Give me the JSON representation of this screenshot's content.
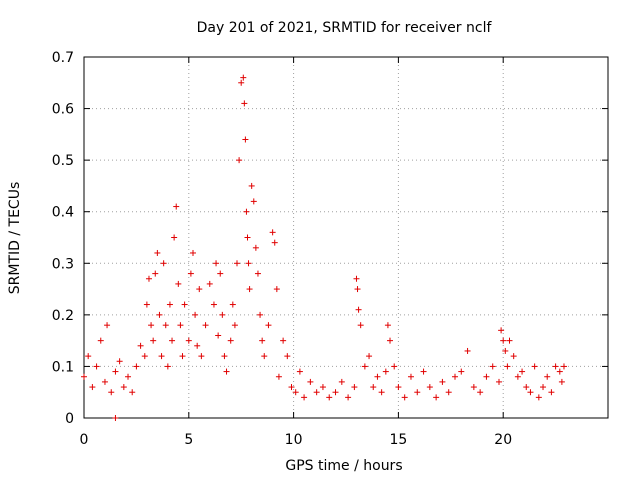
{
  "chart_data": {
    "type": "scatter",
    "title": "Day 201 of 2021, SRMTID for receiver nclf",
    "xlabel": "GPS time / hours",
    "ylabel": "SRMTID / TECUs",
    "xlim": [
      0,
      25
    ],
    "ylim": [
      0,
      0.7
    ],
    "x_ticks": [
      0,
      5,
      10,
      15,
      20
    ],
    "y_ticks": [
      0,
      0.1,
      0.2,
      0.3,
      0.4,
      0.5,
      0.6,
      0.7
    ],
    "x_tick_labels": [
      "0",
      "5",
      "10",
      "15",
      "20"
    ],
    "y_tick_labels": [
      "0",
      "0.1",
      "0.2",
      "0.3",
      "0.4",
      "0.5",
      "0.6",
      "0.7"
    ],
    "grid": true,
    "marker": "+",
    "marker_color": "#e00000",
    "series": [
      {
        "name": "SRMTID",
        "x": [
          0.0,
          0.2,
          0.4,
          0.6,
          0.8,
          1.0,
          1.1,
          1.3,
          1.5,
          1.7,
          1.9,
          2.1,
          2.3,
          2.5,
          2.7,
          2.9,
          3.0,
          3.1,
          3.2,
          3.3,
          3.4,
          3.5,
          3.6,
          3.7,
          3.8,
          3.9,
          4.0,
          4.1,
          4.2,
          4.3,
          4.4,
          4.5,
          4.6,
          4.7,
          4.8,
          5.0,
          5.1,
          5.2,
          5.3,
          5.4,
          5.5,
          5.6,
          5.8,
          6.0,
          6.2,
          6.3,
          6.4,
          6.5,
          6.6,
          6.7,
          6.8,
          7.0,
          7.1,
          7.2,
          7.3,
          7.4,
          7.5,
          7.6,
          7.65,
          7.7,
          7.75,
          7.8,
          7.85,
          7.9,
          8.0,
          8.1,
          8.2,
          8.3,
          8.4,
          8.5,
          8.6,
          8.8,
          9.0,
          9.1,
          9.2,
          9.3,
          9.5,
          9.7,
          9.9,
          10.1,
          10.3,
          10.5,
          10.8,
          11.1,
          11.4,
          11.7,
          12.0,
          12.3,
          12.6,
          12.9,
          13.0,
          13.05,
          13.1,
          13.2,
          13.4,
          13.6,
          13.8,
          14.0,
          14.2,
          14.4,
          14.5,
          14.6,
          14.8,
          15.0,
          15.3,
          15.6,
          15.9,
          16.2,
          16.5,
          16.8,
          17.1,
          17.4,
          17.7,
          18.0,
          18.3,
          18.6,
          18.9,
          19.2,
          19.5,
          19.8,
          19.9,
          20.0,
          20.1,
          20.2,
          20.3,
          20.5,
          20.7,
          20.9,
          21.1,
          21.3,
          21.5,
          21.7,
          21.9,
          22.1,
          22.3,
          22.5,
          22.7,
          22.8,
          22.9,
          1.5
        ],
        "y": [
          0.08,
          0.12,
          0.06,
          0.1,
          0.15,
          0.07,
          0.18,
          0.05,
          0.09,
          0.11,
          0.06,
          0.08,
          0.05,
          0.1,
          0.14,
          0.12,
          0.22,
          0.27,
          0.18,
          0.15,
          0.28,
          0.32,
          0.2,
          0.12,
          0.3,
          0.18,
          0.1,
          0.22,
          0.15,
          0.35,
          0.41,
          0.26,
          0.18,
          0.12,
          0.22,
          0.15,
          0.28,
          0.32,
          0.2,
          0.14,
          0.25,
          0.12,
          0.18,
          0.26,
          0.22,
          0.3,
          0.16,
          0.28,
          0.2,
          0.12,
          0.09,
          0.15,
          0.22,
          0.18,
          0.3,
          0.5,
          0.65,
          0.66,
          0.61,
          0.54,
          0.4,
          0.35,
          0.3,
          0.25,
          0.45,
          0.42,
          0.33,
          0.28,
          0.2,
          0.15,
          0.12,
          0.18,
          0.36,
          0.34,
          0.25,
          0.08,
          0.15,
          0.12,
          0.06,
          0.05,
          0.09,
          0.04,
          0.07,
          0.05,
          0.06,
          0.04,
          0.05,
          0.07,
          0.04,
          0.06,
          0.27,
          0.25,
          0.21,
          0.18,
          0.1,
          0.12,
          0.06,
          0.08,
          0.05,
          0.09,
          0.18,
          0.15,
          0.1,
          0.06,
          0.04,
          0.08,
          0.05,
          0.09,
          0.06,
          0.04,
          0.07,
          0.05,
          0.08,
          0.09,
          0.13,
          0.06,
          0.05,
          0.08,
          0.1,
          0.07,
          0.17,
          0.15,
          0.13,
          0.1,
          0.15,
          0.12,
          0.08,
          0.09,
          0.06,
          0.05,
          0.1,
          0.04,
          0.06,
          0.08,
          0.05,
          0.1,
          0.09,
          0.07,
          0.1,
          0.0
        ]
      }
    ]
  }
}
